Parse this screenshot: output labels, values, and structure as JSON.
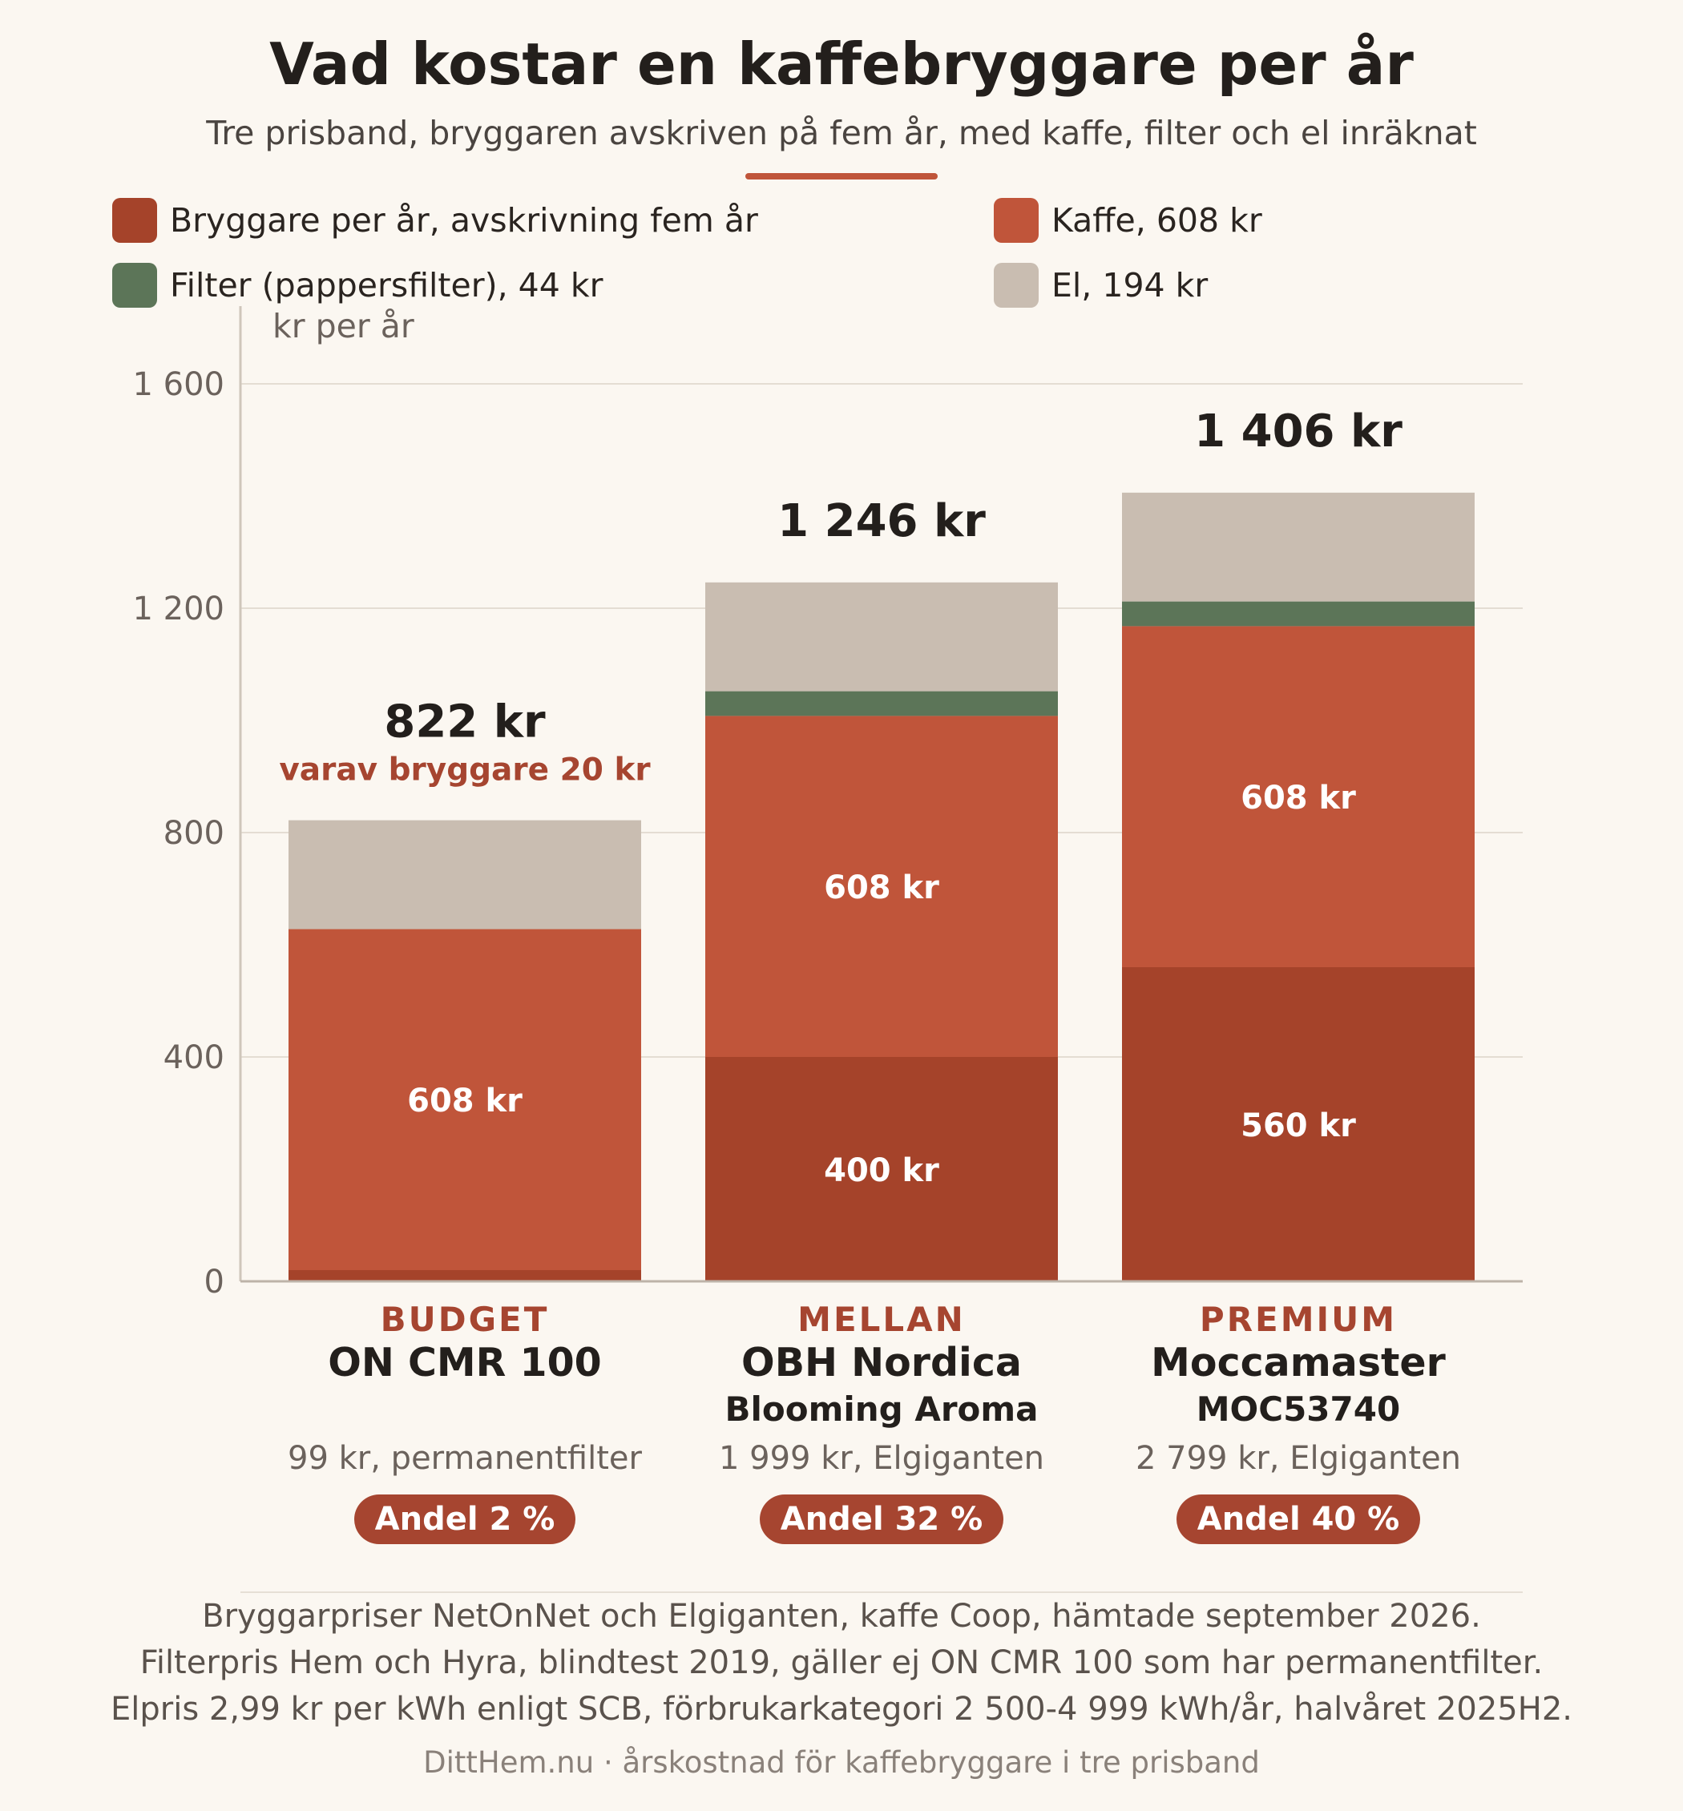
{
  "title": "Vad kostar en kaffebryggare per år",
  "subtitle": "Tre prisband, bryggaren avskriven på fem år, med kaffe, filter och el inräknat",
  "legend": [
    {
      "label": "Bryggare per år, avskrivning fem år",
      "color": "#a5432a"
    },
    {
      "label": "Kaffe, 608 kr",
      "color": "#c0553a"
    },
    {
      "label": "Filter (pappersfilter), 44 kr",
      "color": "#5c7558"
    },
    {
      "label": "El, 194 kr",
      "color": "#c9bdb1"
    }
  ],
  "chart_data": {
    "type": "bar",
    "stacked": true,
    "ylabel": "kr per år",
    "ylim": [
      0,
      1600
    ],
    "yticks": [
      0,
      400,
      800,
      1200,
      1600
    ],
    "ytick_labels": [
      "0",
      "400",
      "800",
      "1 200",
      "1 600"
    ],
    "grid": true,
    "categories": [
      "BUDGET",
      "MELLAN",
      "PREMIUM"
    ],
    "series": [
      {
        "name": "Bryggare per år, avskrivning fem år",
        "values": [
          20,
          400,
          560
        ],
        "color": "#a5432a",
        "labels": [
          "",
          "400 kr",
          "560 kr"
        ]
      },
      {
        "name": "Kaffe, 608 kr",
        "values": [
          608,
          608,
          608
        ],
        "color": "#c0553a",
        "labels": [
          "608 kr",
          "608 kr",
          "608 kr"
        ]
      },
      {
        "name": "Filter (pappersfilter), 44 kr",
        "values": [
          0,
          44,
          44
        ],
        "color": "#5c7558",
        "labels": [
          "",
          "",
          ""
        ]
      },
      {
        "name": "El, 194 kr",
        "values": [
          194,
          194,
          194
        ],
        "color": "#c9bdb1",
        "labels": [
          "",
          "",
          ""
        ]
      }
    ],
    "totals": [
      822,
      1246,
      1406
    ],
    "total_labels": [
      "822 kr",
      "1 246 kr",
      "1 406 kr"
    ],
    "annotation": "varav bryggare 20 kr"
  },
  "products": [
    {
      "band": "BUDGET",
      "model": "ON CMR 100",
      "model2": "",
      "price": "99 kr, permanentfilter",
      "share": "Andel 2 %"
    },
    {
      "band": "MELLAN",
      "model": "OBH Nordica",
      "model2": "Blooming Aroma",
      "price": "1 999 kr, Elgiganten",
      "share": "Andel 32 %"
    },
    {
      "band": "PREMIUM",
      "model": "Moccamaster",
      "model2": "MOC53740",
      "price": "2 799 kr, Elgiganten",
      "share": "Andel 40 %"
    }
  ],
  "footer": [
    "Bryggarpriser NetOnNet och Elgiganten, kaffe Coop, hämtade september 2026.",
    "Filterpris Hem och Hyra, blindtest 2019, gäller ej ON CMR 100 som har permanentfilter.",
    "Elpris 2,99 kr per kWh enligt SCB, förbrukarkategori 2 500-4 999 kWh/år, halvåret 2025H2."
  ],
  "credit": "DittHem.nu · årskostnad för kaffebryggare i tre prisband"
}
